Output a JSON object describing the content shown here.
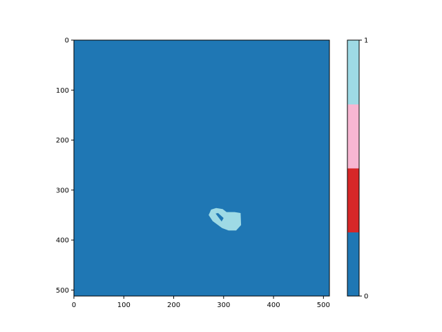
{
  "chart_data": {
    "type": "heatmap",
    "title": "",
    "xlabel": "",
    "ylabel": "",
    "xlim": [
      0,
      512
    ],
    "ylim": [
      512,
      0
    ],
    "x_ticks": [
      0,
      100,
      200,
      300,
      400,
      500
    ],
    "y_ticks": [
      0,
      100,
      200,
      300,
      400,
      500
    ],
    "background_value": 0,
    "background_color": "#1f77b4",
    "region": {
      "value": 1,
      "color": "#9edae5",
      "outer_outline": [
        [
          285,
          336
        ],
        [
          298,
          338
        ],
        [
          306,
          344
        ],
        [
          322,
          344
        ],
        [
          334,
          346
        ],
        [
          335,
          370
        ],
        [
          325,
          381
        ],
        [
          310,
          381
        ],
        [
          297,
          376
        ],
        [
          278,
          362
        ],
        [
          270,
          350
        ],
        [
          275,
          339
        ]
      ],
      "hole_outline": [
        [
          284,
          347
        ],
        [
          289,
          346
        ],
        [
          300,
          356
        ],
        [
          296,
          363
        ]
      ],
      "hole_value": 0
    },
    "colorbar": {
      "min": 0,
      "max": 1,
      "ticks": [
        0,
        1
      ],
      "bands": [
        "#1f77b4",
        "#d62728",
        "#f7b6d2",
        "#9edae5"
      ]
    }
  }
}
